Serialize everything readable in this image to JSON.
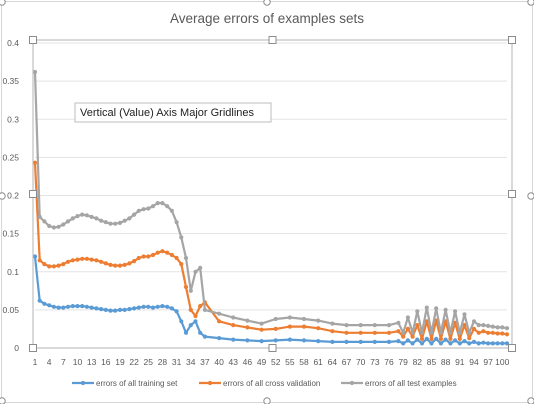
{
  "chart_data": {
    "type": "line",
    "title": "Average errors of examples sets",
    "xlabel": "",
    "ylabel": "",
    "ylim": [
      0,
      0.4
    ],
    "y_ticks": [
      "0",
      "0.05",
      "0.1",
      "0.15",
      "0.2",
      "0.25",
      "0.3",
      "0.35",
      "0.4"
    ],
    "x_ticks": [
      "1",
      "4",
      "7",
      "10",
      "13",
      "16",
      "19",
      "22",
      "25",
      "28",
      "31",
      "34",
      "37",
      "40",
      "43",
      "46",
      "49",
      "52",
      "55",
      "58",
      "61",
      "64",
      "67",
      "70",
      "73",
      "76",
      "79",
      "82",
      "85",
      "88",
      "91",
      "94",
      "97",
      "100"
    ],
    "grid": "horizontal major gridlines",
    "legend_position": "bottom",
    "x_range": [
      1,
      101
    ],
    "series": [
      {
        "name": "errors of all training set",
        "color": "#5B9BD5",
        "x": [
          1,
          2,
          3,
          4,
          5,
          6,
          7,
          8,
          9,
          10,
          11,
          12,
          13,
          14,
          15,
          16,
          17,
          18,
          19,
          20,
          21,
          22,
          23,
          24,
          25,
          26,
          27,
          28,
          29,
          30,
          31,
          32,
          33,
          34,
          35,
          36,
          37,
          40,
          43,
          46,
          49,
          52,
          55,
          58,
          61,
          64,
          67,
          70,
          73,
          76,
          78,
          79,
          80,
          81,
          82,
          83,
          84,
          85,
          86,
          87,
          88,
          89,
          90,
          91,
          92,
          93,
          94,
          95,
          96,
          97,
          98,
          99,
          100,
          101
        ],
        "values": [
          0.12,
          0.062,
          0.058,
          0.056,
          0.054,
          0.053,
          0.053,
          0.054,
          0.055,
          0.055,
          0.055,
          0.054,
          0.053,
          0.052,
          0.051,
          0.05,
          0.049,
          0.049,
          0.05,
          0.05,
          0.051,
          0.052,
          0.053,
          0.054,
          0.054,
          0.053,
          0.054,
          0.055,
          0.054,
          0.052,
          0.048,
          0.035,
          0.02,
          0.03,
          0.035,
          0.02,
          0.015,
          0.013,
          0.011,
          0.01,
          0.009,
          0.01,
          0.011,
          0.01,
          0.009,
          0.008,
          0.008,
          0.008,
          0.008,
          0.008,
          0.009,
          0.006,
          0.01,
          0.006,
          0.011,
          0.006,
          0.012,
          0.006,
          0.012,
          0.006,
          0.011,
          0.006,
          0.01,
          0.006,
          0.009,
          0.006,
          0.008,
          0.006,
          0.007,
          0.006,
          0.006,
          0.006,
          0.006,
          0.006
        ]
      },
      {
        "name": "errors of all cross validation",
        "color": "#ED7D31",
        "x": [
          1,
          2,
          3,
          4,
          5,
          6,
          7,
          8,
          9,
          10,
          11,
          12,
          13,
          14,
          15,
          16,
          17,
          18,
          19,
          20,
          21,
          22,
          23,
          24,
          25,
          26,
          27,
          28,
          29,
          30,
          31,
          32,
          33,
          34,
          35,
          36,
          37,
          40,
          43,
          46,
          49,
          52,
          55,
          58,
          61,
          64,
          67,
          70,
          73,
          76,
          78,
          79,
          80,
          81,
          82,
          83,
          84,
          85,
          86,
          87,
          88,
          89,
          90,
          91,
          92,
          93,
          94,
          95,
          96,
          97,
          98,
          99,
          100,
          101
        ],
        "values": [
          0.243,
          0.115,
          0.11,
          0.107,
          0.107,
          0.108,
          0.11,
          0.113,
          0.115,
          0.116,
          0.117,
          0.117,
          0.116,
          0.115,
          0.113,
          0.111,
          0.109,
          0.108,
          0.108,
          0.109,
          0.111,
          0.114,
          0.118,
          0.12,
          0.12,
          0.122,
          0.125,
          0.127,
          0.125,
          0.122,
          0.118,
          0.11,
          0.08,
          0.05,
          0.042,
          0.055,
          0.06,
          0.035,
          0.03,
          0.027,
          0.024,
          0.025,
          0.028,
          0.028,
          0.026,
          0.022,
          0.02,
          0.02,
          0.02,
          0.02,
          0.022,
          0.015,
          0.025,
          0.015,
          0.03,
          0.012,
          0.035,
          0.012,
          0.036,
          0.012,
          0.035,
          0.012,
          0.033,
          0.012,
          0.03,
          0.013,
          0.025,
          0.02,
          0.022,
          0.02,
          0.02,
          0.019,
          0.019,
          0.018
        ]
      },
      {
        "name": "errors of all test examples",
        "color": "#A5A5A5",
        "x": [
          1,
          2,
          3,
          4,
          5,
          6,
          7,
          8,
          9,
          10,
          11,
          12,
          13,
          14,
          15,
          16,
          17,
          18,
          19,
          20,
          21,
          22,
          23,
          24,
          25,
          26,
          27,
          28,
          29,
          30,
          31,
          32,
          33,
          34,
          35,
          36,
          37,
          40,
          43,
          46,
          49,
          52,
          55,
          58,
          61,
          64,
          67,
          70,
          73,
          76,
          78,
          79,
          80,
          81,
          82,
          83,
          84,
          85,
          86,
          87,
          88,
          89,
          90,
          91,
          92,
          93,
          94,
          95,
          96,
          97,
          98,
          99,
          100,
          101
        ],
        "values": [
          0.362,
          0.172,
          0.166,
          0.16,
          0.158,
          0.159,
          0.162,
          0.166,
          0.17,
          0.173,
          0.175,
          0.174,
          0.172,
          0.17,
          0.167,
          0.165,
          0.163,
          0.163,
          0.164,
          0.167,
          0.17,
          0.175,
          0.18,
          0.182,
          0.183,
          0.186,
          0.19,
          0.19,
          0.186,
          0.18,
          0.165,
          0.145,
          0.118,
          0.075,
          0.1,
          0.105,
          0.05,
          0.045,
          0.04,
          0.036,
          0.032,
          0.038,
          0.04,
          0.038,
          0.036,
          0.032,
          0.03,
          0.03,
          0.03,
          0.03,
          0.033,
          0.02,
          0.04,
          0.02,
          0.048,
          0.02,
          0.053,
          0.02,
          0.052,
          0.02,
          0.05,
          0.02,
          0.048,
          0.02,
          0.044,
          0.02,
          0.035,
          0.03,
          0.03,
          0.029,
          0.028,
          0.027,
          0.027,
          0.026
        ]
      }
    ],
    "tooltip": "Vertical (Value) Axis Major Gridlines"
  }
}
